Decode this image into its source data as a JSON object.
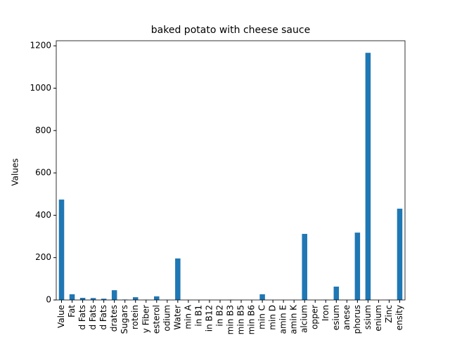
{
  "chart_data": {
    "type": "bar",
    "title": "baked potato with cheese sauce",
    "y_label": "Values",
    "categories": [
      "Value",
      "Fat",
      "d Fats",
      "d Fats",
      "d Fats",
      "drates",
      "Sugars",
      "rotein",
      "y Fiber",
      "esterol",
      "odium",
      "Water",
      "min A",
      "in B1",
      "in B12",
      "in B2",
      "min B3",
      "min B5",
      "min B6",
      "min C",
      "min D",
      "amin E",
      "amin K",
      "alcium",
      "opper",
      "Iron",
      "esium",
      "anese",
      "phorus",
      "ssium",
      "enium",
      "Zinc",
      "ensity"
    ],
    "values": [
      474,
      27,
      10,
      9,
      6,
      46,
      2,
      13,
      1,
      17,
      1,
      196,
      0,
      0,
      0,
      0,
      1,
      0,
      0,
      27,
      0,
      0,
      0,
      312,
      0,
      1,
      63,
      0,
      318,
      1167,
      0,
      1,
      431
    ],
    "color": "#1f77b4",
    "ylim": [
      0,
      1224
    ],
    "yticks": [
      0,
      200,
      400,
      600,
      800,
      1000,
      1200
    ]
  }
}
